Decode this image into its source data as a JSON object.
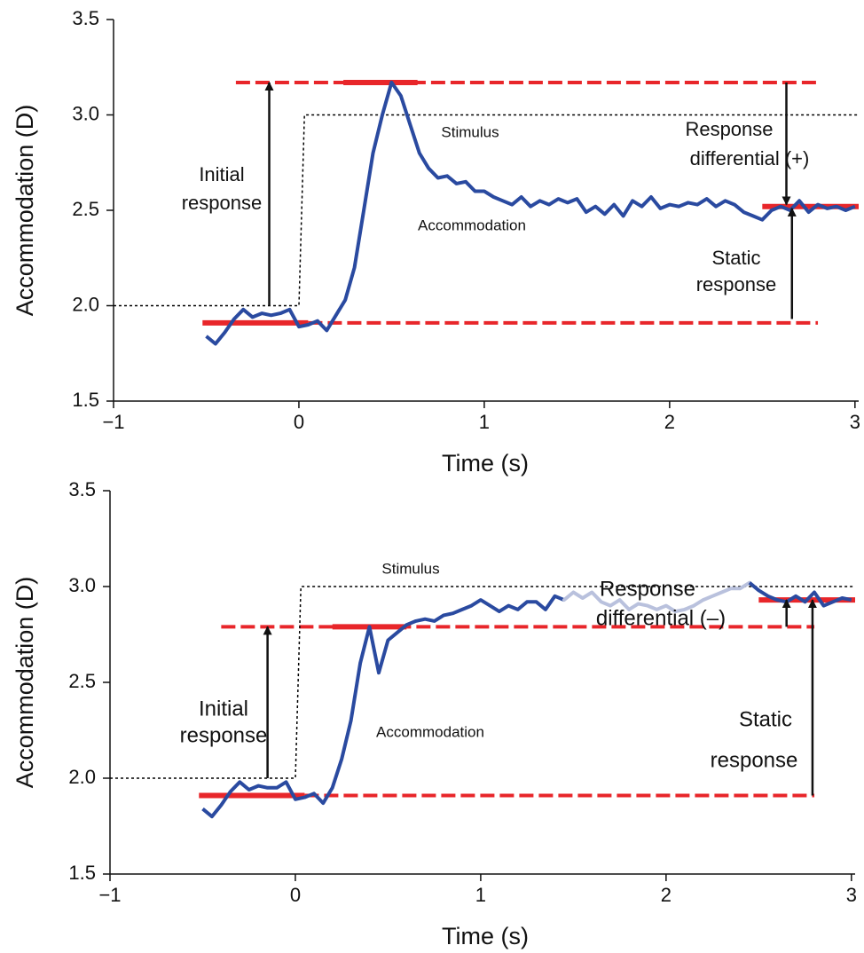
{
  "chart_data": [
    {
      "type": "line",
      "xlabel": "Time (s)",
      "ylabel": "Accommodation (D)",
      "xlim": [
        -1,
        3.02
      ],
      "ylim": [
        1.5,
        3.5
      ],
      "xticks": [
        {
          "value": -1,
          "label": "−1"
        },
        0,
        1,
        2,
        3
      ],
      "yticks": [
        {
          "value": 1.5,
          "label": "1.5"
        },
        {
          "value": 2,
          "label": "2.0"
        },
        {
          "value": 2.5,
          "label": "2.5"
        },
        {
          "value": 3,
          "label": "3.0"
        },
        3.5
      ],
      "series": [
        {
          "name": "Stimulus",
          "color": "#000000",
          "style": "dotted",
          "x": [
            -1,
            0,
            0.03,
            3.02
          ],
          "values": [
            2,
            2,
            3,
            3
          ]
        },
        {
          "name": "Accommodation",
          "color": "#2a4aa0",
          "style": "solid",
          "x": [
            -0.5,
            -0.45,
            -0.4,
            -0.35,
            -0.3,
            -0.25,
            -0.2,
            -0.15,
            -0.1,
            -0.05,
            0,
            0.05,
            0.1,
            0.15,
            0.2,
            0.25,
            0.3,
            0.35,
            0.4,
            0.45,
            0.5,
            0.55,
            0.6,
            0.65,
            0.7,
            0.75,
            0.8,
            0.85,
            0.9,
            0.95,
            1,
            1.05,
            1.1,
            1.15,
            1.2,
            1.25,
            1.3,
            1.35,
            1.4,
            1.45,
            1.5,
            1.55,
            1.6,
            1.65,
            1.7,
            1.75,
            1.8,
            1.85,
            1.9,
            1.95,
            2,
            2.05,
            2.1,
            2.15,
            2.2,
            2.25,
            2.3,
            2.35,
            2.4,
            2.45,
            2.5,
            2.55,
            2.6,
            2.65,
            2.7,
            2.75,
            2.8,
            2.85,
            2.9,
            2.95,
            3
          ],
          "values": [
            1.84,
            1.8,
            1.86,
            1.93,
            1.98,
            1.94,
            1.96,
            1.95,
            1.96,
            1.98,
            1.89,
            1.9,
            1.92,
            1.87,
            1.95,
            2.03,
            2.2,
            2.5,
            2.8,
            3.0,
            3.17,
            3.1,
            2.95,
            2.8,
            2.72,
            2.67,
            2.68,
            2.64,
            2.65,
            2.6,
            2.6,
            2.57,
            2.55,
            2.53,
            2.57,
            2.52,
            2.55,
            2.53,
            2.56,
            2.54,
            2.56,
            2.49,
            2.52,
            2.48,
            2.53,
            2.47,
            2.55,
            2.52,
            2.57,
            2.51,
            2.53,
            2.52,
            2.54,
            2.53,
            2.56,
            2.52,
            2.55,
            2.53,
            2.49,
            2.47,
            2.45,
            2.5,
            2.52,
            2.5,
            2.55,
            2.49,
            2.53,
            2.51,
            2.52,
            2.5,
            2.52
          ]
        }
      ],
      "levels": [
        {
          "y": 1.91,
          "color": "#e8262a",
          "dashed": [
            0.05,
            2.8
          ],
          "solid": [
            -0.52,
            0.05
          ]
        },
        {
          "y": 3.17,
          "color": "#e8262a",
          "dashed": [
            -0.34,
            2.8
          ],
          "solid": [
            0.24,
            0.64
          ]
        },
        {
          "y": 2.52,
          "color": "#e8262a",
          "solid": [
            2.5,
            3.02
          ]
        }
      ],
      "arrows": [
        {
          "x": -0.16,
          "from": 2.0,
          "to": 3.17
        },
        {
          "x": 2.63,
          "from": 3.17,
          "to": 2.53
        },
        {
          "x": 2.66,
          "from": 1.93,
          "to": 2.51
        }
      ],
      "annotations": [
        {
          "lines": [
            "Initial",
            "response"
          ]
        },
        {
          "lines": [
            "Response",
            "differential (+)"
          ]
        },
        {
          "lines": [
            "Static",
            "response"
          ]
        }
      ]
    },
    {
      "type": "line",
      "xlabel": "Time (s)",
      "ylabel": "Accommodation (D)",
      "xlim": [
        -1,
        3.02
      ],
      "ylim": [
        1.5,
        3.5
      ],
      "xticks": [
        {
          "value": -1,
          "label": "−1"
        },
        0,
        1,
        2,
        3
      ],
      "yticks": [
        {
          "value": 1.5,
          "label": "1.5"
        },
        {
          "value": 2,
          "label": "2.0"
        },
        {
          "value": 2.5,
          "label": "2.5"
        },
        {
          "value": 3,
          "label": "3.0"
        },
        3.5
      ],
      "series": [
        {
          "name": "Stimulus",
          "color": "#000000",
          "style": "dotted",
          "x": [
            -1,
            0,
            0.03,
            3.02
          ],
          "values": [
            2,
            2,
            3,
            3
          ]
        },
        {
          "name": "Accommodation",
          "color": "#2a4aa0",
          "style": "solid",
          "faded_range": [
            1.5,
            2.4
          ],
          "faded_color": "#b9c1dd",
          "x": [
            -0.5,
            -0.45,
            -0.4,
            -0.35,
            -0.3,
            -0.25,
            -0.2,
            -0.15,
            -0.1,
            -0.05,
            0,
            0.05,
            0.1,
            0.15,
            0.2,
            0.25,
            0.3,
            0.35,
            0.4,
            0.45,
            0.5,
            0.55,
            0.6,
            0.65,
            0.7,
            0.75,
            0.8,
            0.85,
            0.9,
            0.95,
            1,
            1.05,
            1.1,
            1.15,
            1.2,
            1.25,
            1.3,
            1.35,
            1.4,
            1.45,
            1.5,
            1.55,
            1.6,
            1.65,
            1.7,
            1.75,
            1.8,
            1.85,
            1.9,
            1.95,
            2,
            2.05,
            2.1,
            2.15,
            2.2,
            2.25,
            2.3,
            2.35,
            2.4,
            2.45,
            2.5,
            2.55,
            2.6,
            2.65,
            2.7,
            2.75,
            2.8,
            2.85,
            2.9,
            2.95,
            3
          ],
          "values": [
            1.84,
            1.8,
            1.86,
            1.93,
            1.98,
            1.94,
            1.96,
            1.95,
            1.95,
            1.98,
            1.89,
            1.9,
            1.92,
            1.87,
            1.95,
            2.1,
            2.3,
            2.6,
            2.79,
            2.55,
            2.72,
            2.76,
            2.8,
            2.82,
            2.83,
            2.82,
            2.85,
            2.86,
            2.88,
            2.9,
            2.93,
            2.9,
            2.87,
            2.9,
            2.88,
            2.92,
            2.92,
            2.88,
            2.95,
            2.93,
            2.97,
            2.94,
            2.97,
            2.92,
            2.9,
            2.93,
            2.88,
            2.91,
            2.9,
            2.88,
            2.9,
            2.87,
            2.88,
            2.9,
            2.93,
            2.95,
            2.97,
            2.99,
            2.99,
            3.02,
            2.98,
            2.95,
            2.93,
            2.92,
            2.95,
            2.92,
            2.97,
            2.9,
            2.92,
            2.94,
            2.93
          ]
        }
      ],
      "levels": [
        {
          "y": 1.91,
          "color": "#e8262a",
          "dashed": [
            0.05,
            2.8
          ],
          "solid": [
            -0.52,
            0.05
          ]
        },
        {
          "y": 2.79,
          "color": "#e8262a",
          "dashed": [
            -0.4,
            2.8
          ],
          "solid": [
            0.2,
            0.6
          ]
        },
        {
          "y": 2.93,
          "color": "#e8262a",
          "solid": [
            2.5,
            3.02
          ]
        }
      ],
      "arrows": [
        {
          "x": -0.15,
          "from": 2.0,
          "to": 2.79
        },
        {
          "x": 2.65,
          "from": 2.79,
          "to": 2.93
        },
        {
          "x": 2.79,
          "from": 1.91,
          "to": 2.93
        }
      ],
      "annotations": [
        {
          "lines": [
            "Initial",
            "response"
          ]
        },
        {
          "lines": [
            "Response",
            "differential (–)"
          ]
        },
        {
          "lines": [
            "Static",
            "response"
          ]
        }
      ]
    }
  ]
}
